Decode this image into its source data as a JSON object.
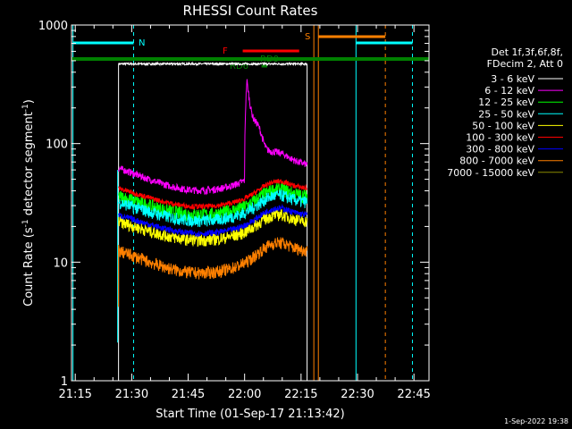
{
  "chart_data": {
    "type": "line",
    "title": "RHESSI Count Rates",
    "xlabel": "Start Time (01-Sep-17 21:13:42)",
    "ylabel_main": "Count Rate (s",
    "ylabel_sup1": "-1",
    "ylabel_mid": " detector segment",
    "ylabel_sup2": "-1",
    "ylabel_end": ")",
    "y_scale": "log",
    "ylim": [
      1,
      1000
    ],
    "xlim_min": [
      1274,
      1369
    ],
    "x_ticks": [
      {
        "m": 1275,
        "label": "21:15"
      },
      {
        "m": 1290,
        "label": "21:30"
      },
      {
        "m": 1305,
        "label": "21:45"
      },
      {
        "m": 1320,
        "label": "22:00"
      },
      {
        "m": 1335,
        "label": "22:15"
      },
      {
        "m": 1350,
        "label": "22:30"
      },
      {
        "m": 1365,
        "label": "22:45"
      }
    ],
    "y_ticks": [
      {
        "v": 1,
        "label": "1"
      },
      {
        "v": 10,
        "label": "10"
      },
      {
        "v": 100,
        "label": "100"
      },
      {
        "v": 1000,
        "label": "1000"
      }
    ],
    "legend_header": [
      "Det 1f,3f,6f,8f,",
      "FDecim 2, Att 0"
    ],
    "series": [
      {
        "name": "3 - 6 keV",
        "color": "#ffffff"
      },
      {
        "name": "6 - 12 keV",
        "color": "#ff00ff"
      },
      {
        "name": "12 - 25 keV",
        "color": "#00ff00"
      },
      {
        "name": "25 - 50 keV",
        "color": "#00ffff"
      },
      {
        "name": "50 - 100 keV",
        "color": "#ffff00"
      },
      {
        "name": "100 - 300 keV",
        "color": "#ff0000"
      },
      {
        "name": "300 - 800 keV",
        "color": "#0000ff"
      },
      {
        "name": "800 - 7000 keV",
        "color": "#ff8000"
      },
      {
        "name": "7000 - 15000 keV",
        "color": "#8b8b00"
      }
    ],
    "flag_labels": {
      "N": "N",
      "S": "S",
      "F": "F",
      "RD0": "RD0",
      "RD6": "RD6"
    },
    "timestamp": "1-Sep-2022 19:38"
  }
}
